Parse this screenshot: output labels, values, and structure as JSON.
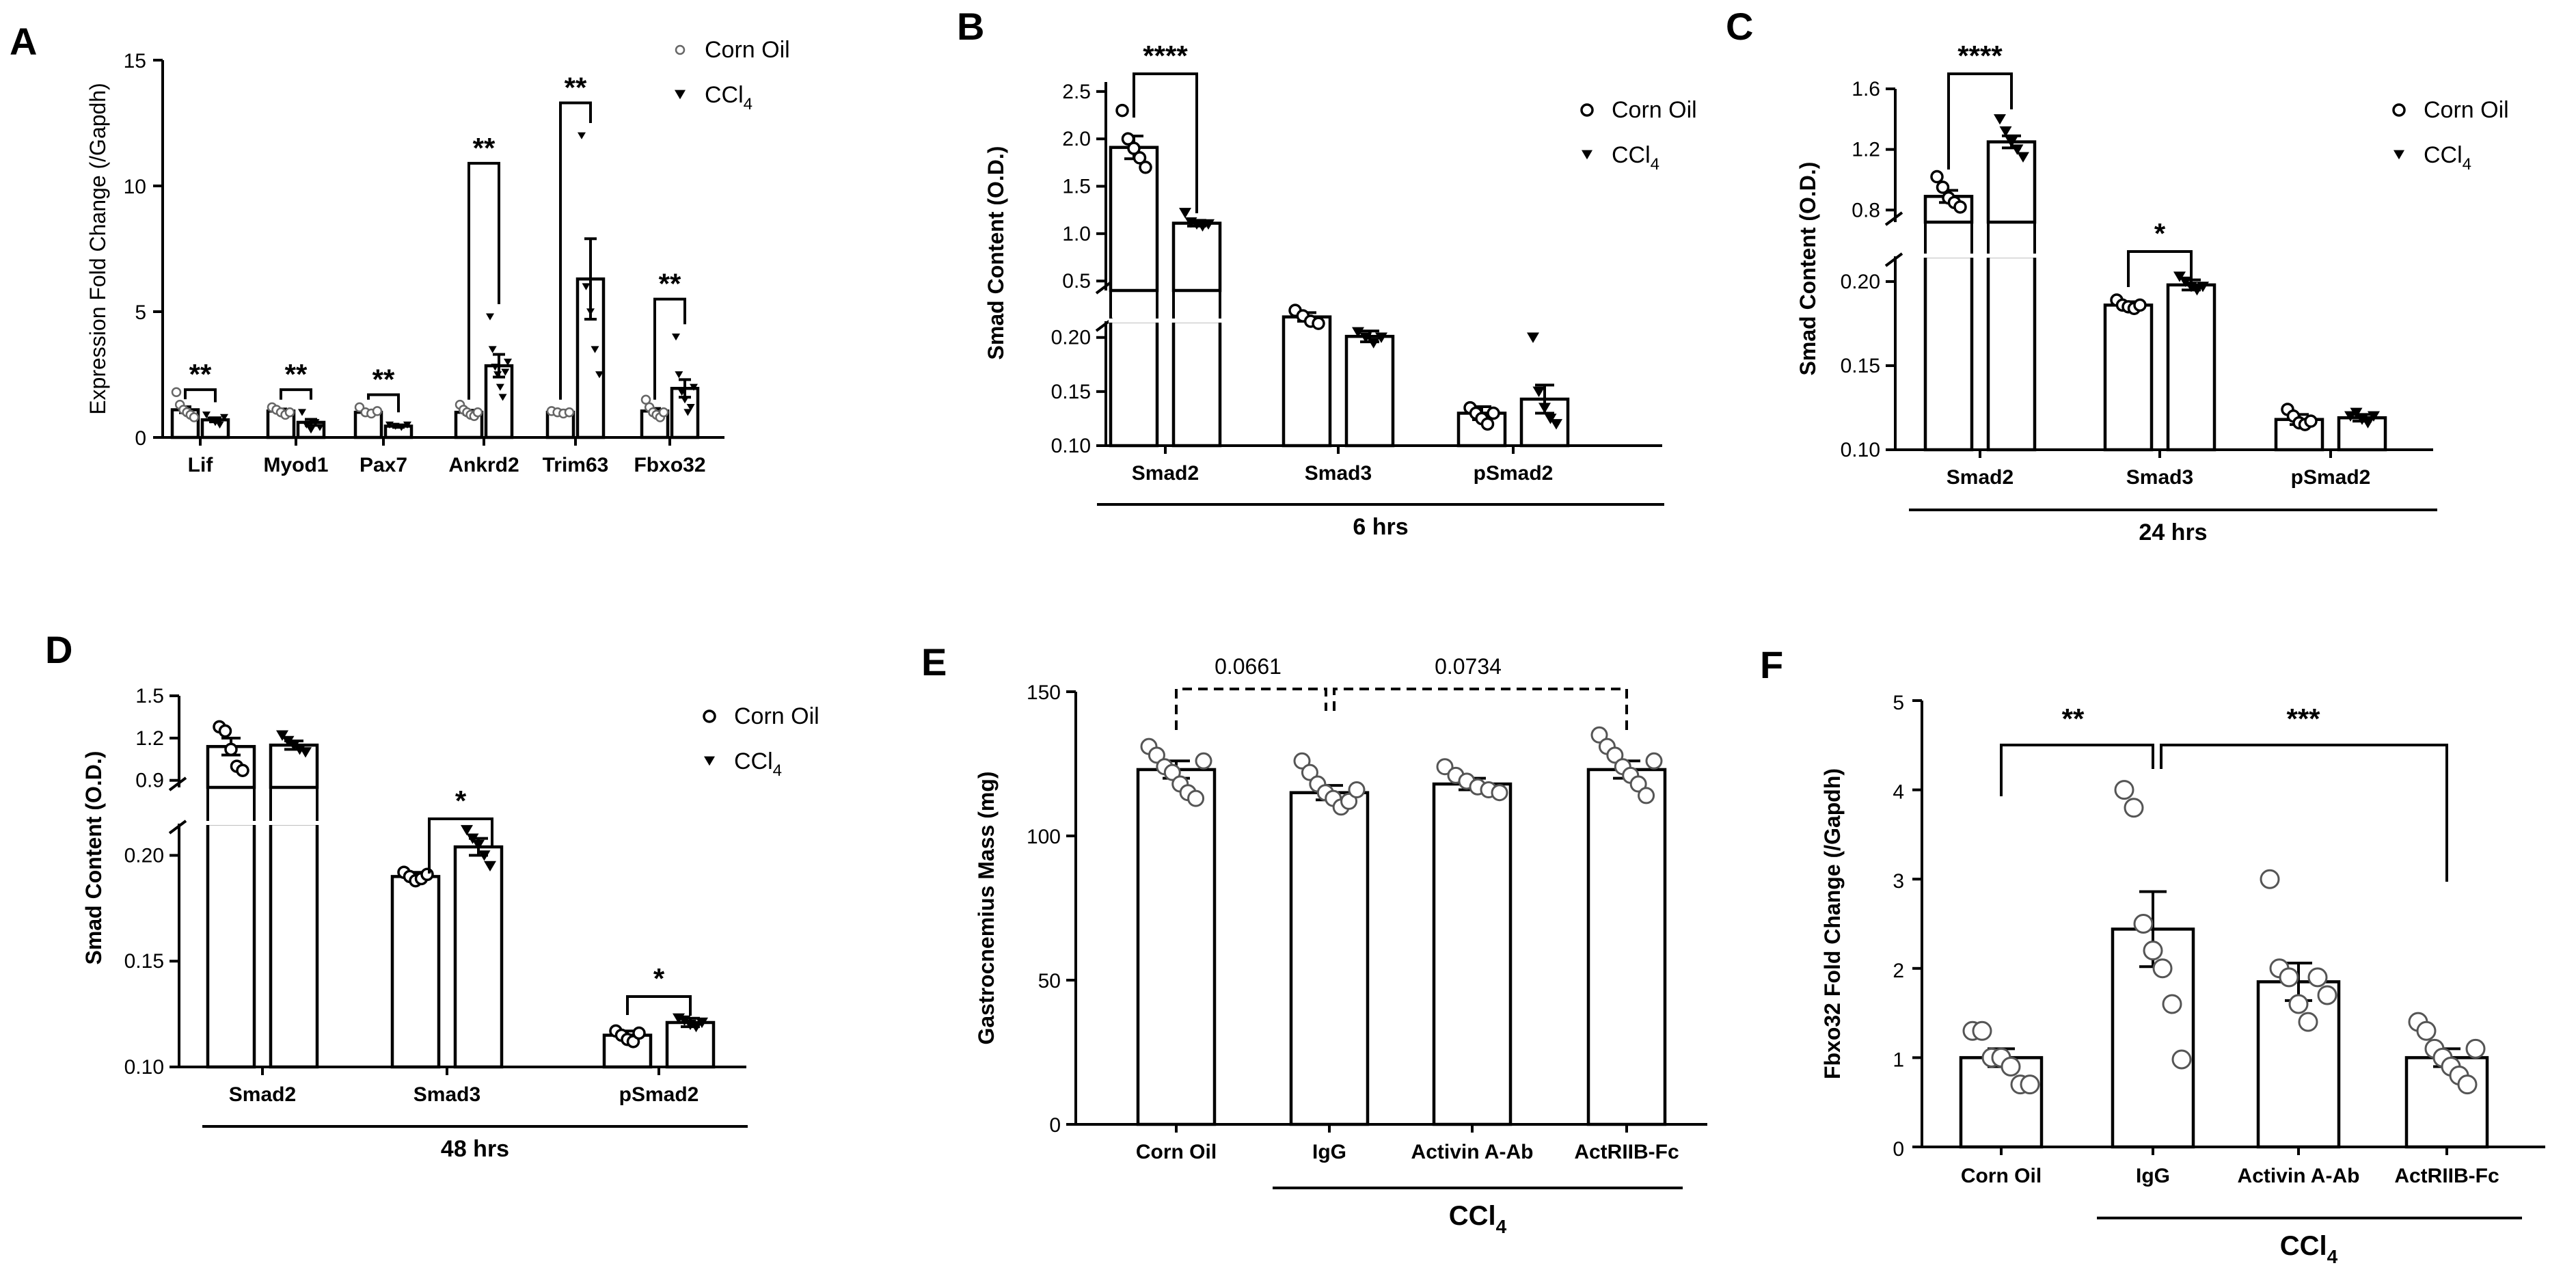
{
  "chart_data": [
    {
      "panel": "A",
      "type": "bar",
      "ylabel": "Expression Fold Change (/Gapdh)",
      "ylim": [
        0,
        15
      ],
      "yticks": [
        "0",
        "5",
        "10",
        "15"
      ],
      "yticks_values": [
        0,
        5,
        10,
        15
      ],
      "categories": [
        "Lif",
        "Myod1",
        "Pax7",
        "Ankrd2",
        "Trim63",
        "Fbxo32"
      ],
      "legend": [
        "Corn Oil",
        "CCl",
        "4"
      ],
      "series": [
        {
          "name": "Corn Oil",
          "values": [
            1.1,
            1.05,
            1.0,
            1.0,
            1.0,
            1.05
          ],
          "sem": [
            0.12,
            0.08,
            0.06,
            0.08,
            0.08,
            0.1
          ],
          "points": [
            [
              1.8,
              1.3,
              1.1,
              1.0,
              0.9,
              0.8
            ],
            [
              1.2,
              1.1,
              1.0,
              0.9,
              1.0
            ],
            [
              1.2,
              1.0,
              0.95,
              1.05
            ],
            [
              1.3,
              1.1,
              1.0,
              0.9,
              0.85,
              1.0
            ],
            [
              1.05,
              1.0,
              0.95,
              1.0
            ],
            [
              1.5,
              1.2,
              1.0,
              0.9,
              0.8,
              1.0
            ]
          ]
        },
        {
          "name": "CCl4",
          "values": [
            0.7,
            0.6,
            0.45,
            2.85,
            6.3,
            1.95
          ],
          "sem": [
            0.08,
            0.12,
            0.05,
            0.45,
            1.6,
            0.35
          ],
          "points": [
            [
              0.9,
              0.7,
              0.6,
              0.5,
              0.8
            ],
            [
              1.0,
              0.5,
              0.3,
              0.6,
              0.4
            ],
            [
              0.5,
              0.45,
              0.4,
              0.5
            ],
            [
              4.8,
              3.5,
              2.8,
              2.5,
              2.0,
              1.6,
              2.6,
              3.0
            ],
            [
              12.0,
              6.0,
              5.0,
              3.5,
              2.5
            ],
            [
              4.0,
              2.5,
              1.8,
              1.5,
              1.0,
              1.2,
              2.0
            ]
          ]
        }
      ],
      "significance": [
        "**",
        "**",
        "**",
        "**",
        "**",
        "**"
      ]
    },
    {
      "panel": "B",
      "type": "bar",
      "ylabel": "Smad Content (O.D.)",
      "group_label": "6 hrs",
      "categories": [
        "Smad2",
        "Smad3",
        "pSmad2"
      ],
      "yticks_upper": [
        "0.5",
        "1.0",
        "1.5",
        "2.0",
        "2.5"
      ],
      "yticks_lower": [
        "0.10",
        "0.15",
        "0.20"
      ],
      "ylim_lower": [
        0.1,
        0.215
      ],
      "ylim_upper": [
        0.4,
        2.6
      ],
      "legend": [
        "Corn Oil",
        "CCl",
        "4"
      ],
      "series": [
        {
          "name": "Corn Oil",
          "values": [
            1.91,
            0.219,
            0.13
          ],
          "sem": [
            0.12,
            0.004,
            0.006
          ],
          "points": [
            [
              2.3,
              2.0,
              1.9,
              1.8,
              1.7
            ],
            [
              0.225,
              0.22,
              0.215,
              0.213
            ],
            [
              0.135,
              0.13,
              0.125,
              0.12,
              0.13
            ]
          ]
        },
        {
          "name": "CCl4",
          "values": [
            1.11,
            0.201,
            0.143
          ],
          "sem": [
            0.03,
            0.005,
            0.013
          ],
          "points": [
            [
              1.22,
              1.12,
              1.1,
              1.08,
              1.1
            ],
            [
              0.205,
              0.2,
              0.195,
              0.2
            ],
            [
              0.2,
              0.15,
              0.135,
              0.125,
              0.12
            ]
          ]
        }
      ],
      "significance": [
        "****"
      ]
    },
    {
      "panel": "C",
      "type": "bar",
      "ylabel": "Smad Content (O.D.)",
      "group_label": "24 hrs",
      "categories": [
        "Smad2",
        "Smad3",
        "pSmad2"
      ],
      "yticks_upper": [
        "0.8",
        "1.2",
        "1.6"
      ],
      "yticks_lower": [
        "0.10",
        "0.15",
        "0.20"
      ],
      "ylim_lower": [
        0.1,
        0.215
      ],
      "ylim_upper": [
        0.72,
        1.6
      ],
      "legend": [
        "Corn Oil",
        "CCl",
        "4"
      ],
      "series": [
        {
          "name": "Corn Oil",
          "values": [
            0.89,
            0.186,
            0.118
          ],
          "sem": [
            0.04,
            0.002,
            0.003
          ],
          "points": [
            [
              1.02,
              0.95,
              0.88,
              0.85,
              0.82
            ],
            [
              0.189,
              0.186,
              0.185,
              0.184,
              0.186
            ],
            [
              0.124,
              0.12,
              0.116,
              0.115,
              0.117
            ]
          ]
        },
        {
          "name": "CCl4",
          "values": [
            1.25,
            0.198,
            0.119
          ],
          "sem": [
            0.04,
            0.003,
            0.002
          ],
          "points": [
            [
              1.4,
              1.32,
              1.25,
              1.2,
              1.15
            ],
            [
              0.203,
              0.2,
              0.197,
              0.195,
              0.197
            ],
            [
              0.12,
              0.122,
              0.118,
              0.116,
              0.12
            ]
          ]
        }
      ],
      "significance": [
        "****",
        "*"
      ]
    },
    {
      "panel": "D",
      "type": "bar",
      "ylabel": "Smad Content (O.D.)",
      "group_label": "48 hrs",
      "categories": [
        "Smad2",
        "Smad3",
        "pSmad2"
      ],
      "yticks_upper": [
        "0.9",
        "1.2",
        "1.5"
      ],
      "yticks_lower": [
        "0.10",
        "0.15",
        "0.20"
      ],
      "ylim_lower": [
        0.1,
        0.215
      ],
      "ylim_upper": [
        0.85,
        1.5
      ],
      "legend": [
        "Corn Oil",
        "CCl",
        "4"
      ],
      "series": [
        {
          "name": "Corn Oil",
          "values": [
            1.14,
            0.19,
            0.115
          ],
          "sem": [
            0.06,
            0.002,
            0.002
          ],
          "points": [
            [
              1.28,
              1.25,
              1.12,
              1.0,
              0.97
            ],
            [
              0.192,
              0.19,
              0.188,
              0.189,
              0.191
            ],
            [
              0.117,
              0.115,
              0.113,
              0.112,
              0.116
            ]
          ]
        },
        {
          "name": "CCl4",
          "values": [
            1.15,
            0.204,
            0.121
          ],
          "sem": [
            0.03,
            0.004,
            0.002
          ],
          "points": [
            [
              1.22,
              1.18,
              1.15,
              1.12,
              1.1
            ],
            [
              0.212,
              0.208,
              0.205,
              0.2,
              0.195
            ],
            [
              0.123,
              0.122,
              0.12,
              0.119,
              0.121
            ]
          ]
        }
      ],
      "significance": [
        "*",
        "*"
      ]
    },
    {
      "panel": "E",
      "type": "bar",
      "ylabel": "Gastrocnemius Mass (mg)",
      "ylim": [
        0,
        150
      ],
      "yticks": [
        "0",
        "50",
        "100",
        "150"
      ],
      "yticks_values": [
        0,
        50,
        100,
        150
      ],
      "categories": [
        "Corn Oil",
        "IgG",
        "Activin A-Ab",
        "ActRIIB-Fc"
      ],
      "group_label": "CCl",
      "group_sub": "4",
      "values": [
        123,
        115,
        118,
        123
      ],
      "sem": [
        3,
        2.5,
        2,
        3
      ],
      "points": [
        [
          131,
          128,
          124,
          122,
          118,
          115,
          113,
          126
        ],
        [
          126,
          122,
          118,
          115,
          113,
          110,
          112,
          116
        ],
        [
          124,
          121,
          119,
          117,
          116,
          115
        ],
        [
          135,
          131,
          128,
          124,
          121,
          118,
          114,
          126
        ]
      ],
      "comparisons": [
        "0.0661",
        "0.0734"
      ]
    },
    {
      "panel": "F",
      "type": "bar",
      "ylabel": "Fbxo32 Fold Change (/Gapdh)",
      "ylim": [
        0,
        5
      ],
      "yticks": [
        "0",
        "1",
        "2",
        "3",
        "4",
        "5"
      ],
      "yticks_values": [
        0,
        1,
        2,
        3,
        4,
        5
      ],
      "categories": [
        "Corn Oil",
        "IgG",
        "Activin A-Ab",
        "ActRIIB-Fc"
      ],
      "group_label": "CCl",
      "group_sub": "4",
      "values": [
        1.0,
        2.44,
        1.85,
        1.0
      ],
      "sem": [
        0.1,
        0.42,
        0.21,
        0.1
      ],
      "points": [
        [
          1.3,
          1.3,
          1.0,
          1.0,
          0.9,
          0.7,
          0.7
        ],
        [
          4.0,
          3.8,
          2.5,
          2.2,
          2.0,
          1.6,
          0.98
        ],
        [
          3.0,
          2.0,
          1.9,
          1.6,
          1.4,
          1.9,
          1.7
        ],
        [
          1.4,
          1.3,
          1.1,
          1.0,
          0.9,
          0.8,
          0.7,
          1.1
        ]
      ],
      "significance": [
        "**",
        "***"
      ]
    }
  ]
}
